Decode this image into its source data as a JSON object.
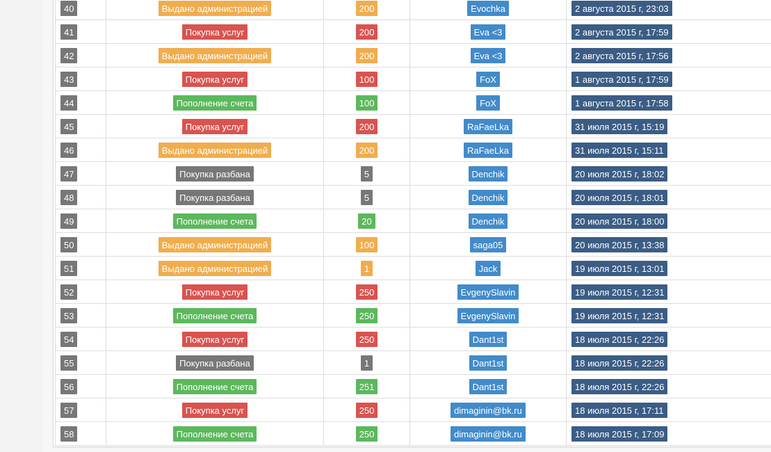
{
  "table": {
    "rows": [
      {
        "id": 40,
        "type": "Выдано администрацией",
        "amount": 200,
        "user": "Evochka",
        "date": "2 августа 2015 г, 23:03",
        "color": "#f0ad4e"
      },
      {
        "id": 41,
        "type": "Покупка услуг",
        "amount": 200,
        "user": "Eva <3",
        "date": "2 августа 2015 г, 17:59",
        "color": "#d9534f"
      },
      {
        "id": 42,
        "type": "Выдано администрацией",
        "amount": 200,
        "user": "Eva <3",
        "date": "2 августа 2015 г, 17:56",
        "color": "#f0ad4e"
      },
      {
        "id": 43,
        "type": "Покупка услуг",
        "amount": 100,
        "user": "FoX",
        "date": "1 августа 2015 г, 17:59",
        "color": "#d9534f"
      },
      {
        "id": 44,
        "type": "Пополнение счета",
        "amount": 100,
        "user": "FoX",
        "date": "1 августа 2015 г, 17:58",
        "color": "#5cb85c"
      },
      {
        "id": 45,
        "type": "Покупка услуг",
        "amount": 200,
        "user": "RaFaeLka",
        "date": "31 июля 2015 г, 15:19",
        "color": "#d9534f"
      },
      {
        "id": 46,
        "type": "Выдано администрацией",
        "amount": 200,
        "user": "RaFaeLka",
        "date": "31 июля 2015 г, 15:11",
        "color": "#f0ad4e"
      },
      {
        "id": 47,
        "type": "Покупка разбана",
        "amount": 5,
        "user": "Denchik",
        "date": "20 июля 2015 г, 18:02",
        "color": "#777777"
      },
      {
        "id": 48,
        "type": "Покупка разбана",
        "amount": 5,
        "user": "Denchik",
        "date": "20 июля 2015 г, 18:01",
        "color": "#777777"
      },
      {
        "id": 49,
        "type": "Пополнение счета",
        "amount": 20,
        "user": "Denchik",
        "date": "20 июля 2015 г, 18:00",
        "color": "#5cb85c"
      },
      {
        "id": 50,
        "type": "Выдано администрацией",
        "amount": 100,
        "user": "saga05",
        "date": "20 июля 2015 г, 13:38",
        "color": "#f0ad4e"
      },
      {
        "id": 51,
        "type": "Выдано администрацией",
        "amount": 1,
        "user": "Jack",
        "date": "19 июля 2015 г, 13:01",
        "color": "#f0ad4e"
      },
      {
        "id": 52,
        "type": "Покупка услуг",
        "amount": 250,
        "user": "EvgenySlavin",
        "date": "19 июля 2015 г, 12:31",
        "color": "#d9534f"
      },
      {
        "id": 53,
        "type": "Пополнение счета",
        "amount": 250,
        "user": "EvgenySlavin",
        "date": "19 июля 2015 г, 12:31",
        "color": "#5cb85c"
      },
      {
        "id": 54,
        "type": "Покупка услуг",
        "amount": 250,
        "user": "Dant1st",
        "date": "18 июля 2015 г, 22:26",
        "color": "#d9534f"
      },
      {
        "id": 55,
        "type": "Покупка разбана",
        "amount": 1,
        "user": "Dant1st",
        "date": "18 июля 2015 г, 22:26",
        "color": "#777777"
      },
      {
        "id": 56,
        "type": "Пополнение счета",
        "amount": 251,
        "user": "Dant1st",
        "date": "18 июля 2015 г, 22:26",
        "color": "#5cb85c"
      },
      {
        "id": 57,
        "type": "Покупка услуг",
        "amount": 250,
        "user": "dimaginin@bk.ru",
        "date": "18 июля 2015 г, 17:11",
        "color": "#d9534f"
      },
      {
        "id": 58,
        "type": "Пополнение счета",
        "amount": 250,
        "user": "dimaginin@bk.ru",
        "date": "18 июля 2015 г, 17:09",
        "color": "#5cb85c"
      }
    ]
  }
}
